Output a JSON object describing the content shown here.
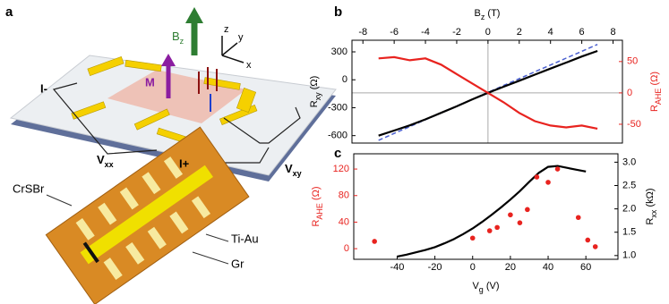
{
  "panel_labels": [
    "a",
    "b",
    "c"
  ],
  "diagram": {
    "field_label": [
      "B",
      "z"
    ],
    "axes": [
      "z",
      "y",
      "x"
    ],
    "magnetization": "M",
    "current_minus": "I-",
    "current_plus": "I+",
    "v_xx": [
      "V",
      "xx"
    ],
    "v_xy": [
      "V",
      "xy"
    ],
    "material": "CrSBr",
    "contacts": "Ti-Au",
    "graphene": "Gr"
  },
  "chart_data": [
    {
      "type": "line",
      "x_axis": "top",
      "x_label": [
        "B",
        "z",
        " (T)"
      ],
      "y_label": [
        "R",
        "xy",
        " (Ω)"
      ],
      "y2_label": [
        "R",
        "AHE",
        " (Ω)"
      ],
      "y_color": "#000000",
      "y2_color": "#e8231f",
      "xlim": [
        -8.7,
        8.6
      ],
      "xticks": [
        -8,
        -6,
        -4,
        -2,
        0,
        2,
        4,
        6,
        8
      ],
      "ylim": [
        -680,
        425
      ],
      "yticks": [
        300,
        0,
        -300,
        -600
      ],
      "y2lim": [
        -80,
        84
      ],
      "y2ticks": [
        50,
        0,
        -50
      ],
      "x": [
        -7,
        -6,
        -5,
        -4,
        -3,
        -2,
        -1,
        0,
        1,
        2,
        3,
        4,
        5,
        6,
        7
      ],
      "series": [
        {
          "color": "#4a5fd0",
          "style": "dashed",
          "axis": "y",
          "values": [
            -650,
            -576,
            -503,
            -429,
            -356,
            -282,
            -209,
            -135,
            -61,
            12,
            86,
            159,
            233,
            306,
            380
          ]
        },
        {
          "color": "#000000",
          "style": "solid",
          "axis": "y",
          "values": [
            -600,
            -545,
            -490,
            -425,
            -355,
            -285,
            -210,
            -140,
            -75,
            -10,
            55,
            120,
            185,
            250,
            310
          ]
        },
        {
          "color": "#e8231f",
          "style": "solid",
          "axis": "y2",
          "values": [
            55,
            57,
            52,
            55,
            45,
            30,
            15,
            0,
            -15,
            -32,
            -45,
            -52,
            -55,
            -52,
            -57
          ]
        }
      ]
    },
    {
      "type": "line",
      "x_axis": "bottom",
      "x_label": [
        "V",
        "g",
        " (V)"
      ],
      "y_label": [
        "R",
        "AHE",
        " (Ω)"
      ],
      "y2_label": [
        "R",
        "xx",
        " (kΩ)"
      ],
      "y_color": "#e8231f",
      "y2_color": "#000000",
      "xlim": [
        -63,
        77
      ],
      "xticks": [
        -40,
        -20,
        0,
        20,
        40,
        60
      ],
      "ylim": [
        -16,
        143
      ],
      "yticks": [
        0,
        40,
        80,
        120
      ],
      "y2lim": [
        0.92,
        3.18
      ],
      "y2ticks": [
        {
          "value": 1,
          "label": "1.0"
        },
        1.5,
        {
          "value": 2,
          "label": "2.0"
        },
        2.5,
        {
          "value": 3,
          "label": "3.0"
        }
      ],
      "series": [
        {
          "color": "#000000",
          "style": "solid",
          "axis": "y2",
          "x": [
            -40,
            -35,
            -30,
            -25,
            -20,
            -15,
            -10,
            -5,
            0,
            5,
            10,
            15,
            20,
            25,
            30,
            35,
            40,
            45,
            50,
            55,
            60
          ],
          "values": [
            0.98,
            1.02,
            1.07,
            1.12,
            1.18,
            1.26,
            1.35,
            1.46,
            1.58,
            1.72,
            1.87,
            2.03,
            2.2,
            2.38,
            2.58,
            2.77,
            2.9,
            2.92,
            2.88,
            2.84,
            2.8
          ]
        },
        {
          "color": "#e8231f",
          "style": "dots",
          "axis": "y",
          "x": [
            -52,
            0,
            9,
            13,
            20,
            25,
            29,
            34,
            40,
            45,
            56,
            61,
            65
          ],
          "values": [
            11,
            16,
            27,
            32,
            51,
            39,
            59,
            108,
            100,
            120,
            47,
            13,
            3
          ]
        }
      ]
    }
  ]
}
